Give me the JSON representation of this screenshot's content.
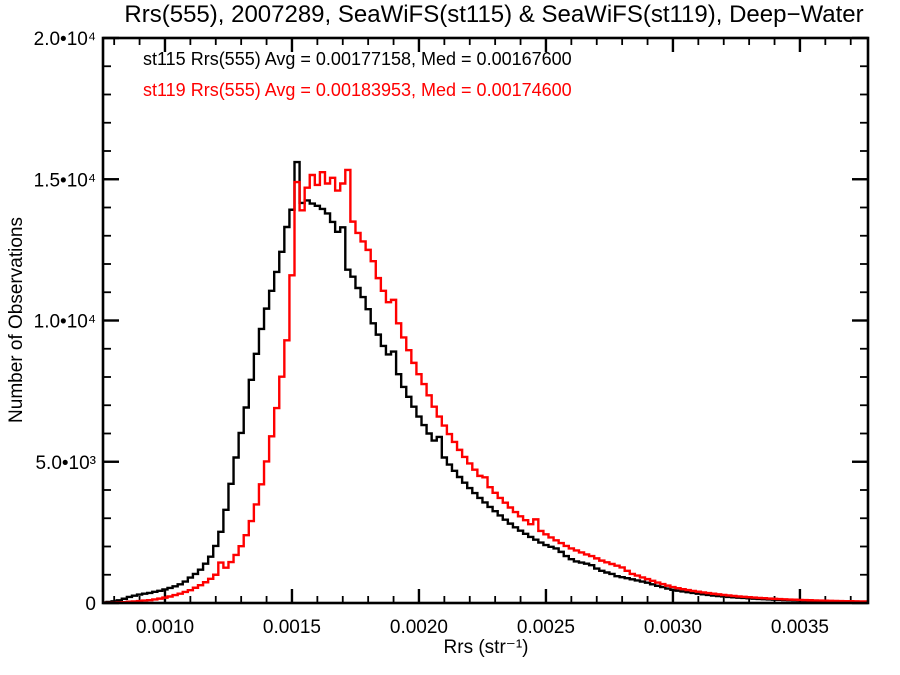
{
  "title": "Rrs(555), 2007289, SeaWiFS(st115) & SeaWiFS(st119), Deep−Water",
  "legend": {
    "st115": "st115 Rrs(555) Avg = 0.00177158, Med = 0.00167600",
    "st119": "st119 Rrs(555) Avg = 0.00183953, Med = 0.00174600"
  },
  "axes": {
    "xlabel": "Rrs (str⁻¹)",
    "ylabel": "Number of Observations"
  },
  "colors": {
    "st115": "#000000",
    "st119": "#ff0000",
    "frame": "#000000",
    "background": "#ffffff"
  },
  "chart_data": {
    "type": "line",
    "style": "step-histogram",
    "title": "Rrs(555), 2007289, SeaWiFS(st115) & SeaWiFS(st119), Deep−Water",
    "xlabel": "Rrs (str⁻¹)",
    "ylabel": "Number of Observations",
    "grid": false,
    "legend_position": "top-left-inside",
    "xlim": [
      0.000756,
      0.003768
    ],
    "ylim": [
      0,
      20000
    ],
    "x_major_ticks": [
      {
        "value": 0.001,
        "label": "0.0010"
      },
      {
        "value": 0.0015,
        "label": "0.0015"
      },
      {
        "value": 0.002,
        "label": "0.0020"
      },
      {
        "value": 0.0025,
        "label": "0.0025"
      },
      {
        "value": 0.003,
        "label": "0.0030"
      },
      {
        "value": 0.0035,
        "label": "0.0035"
      }
    ],
    "x_minor_step": 0.0001,
    "y_major_ticks": [
      {
        "value": 0,
        "label": "0"
      },
      {
        "value": 5000,
        "label": "5.0•10³"
      },
      {
        "value": 10000,
        "label": "1.0•10⁴"
      },
      {
        "value": 15000,
        "label": "1.5•10⁴"
      },
      {
        "value": 20000,
        "label": "2.0•10⁴"
      }
    ],
    "y_minor_step": 1000,
    "bin_start": 0.00076,
    "bin_width": 2e-05,
    "series": [
      {
        "name": "st115",
        "color": "#000000",
        "avg": 0.00177158,
        "med": 0.001676,
        "counts": [
          20,
          35,
          60,
          95,
          150,
          215,
          260,
          300,
          330,
          355,
          395,
          430,
          480,
          535,
          590,
          660,
          760,
          900,
          1030,
          1180,
          1390,
          1640,
          2020,
          2520,
          3300,
          4220,
          5150,
          6020,
          6920,
          7900,
          8820,
          9700,
          10420,
          11050,
          11720,
          12430,
          13310,
          13920,
          15610,
          14160,
          14250,
          14140,
          14060,
          13950,
          13790,
          13490,
          13140,
          13300,
          11800,
          11550,
          11150,
          10830,
          10400,
          9900,
          9500,
          9100,
          8800,
          8900,
          8100,
          7650,
          7300,
          6950,
          6600,
          6300,
          6000,
          5750,
          5880,
          5150,
          4900,
          4680,
          4460,
          4260,
          4070,
          3890,
          3720,
          3560,
          3400,
          3250,
          3100,
          2950,
          2810,
          2680,
          2560,
          2450,
          2340,
          2240,
          2140,
          2050,
          1990,
          1930,
          1810,
          1660,
          1550,
          1470,
          1430,
          1390,
          1340,
          1220,
          1140,
          1080,
          1030,
          950,
          915,
          880,
          840,
          800,
          760,
          720,
          660,
          610,
          565,
          510,
          465,
          435,
          408,
          382,
          356,
          332,
          308,
          286,
          266,
          248,
          232,
          217,
          203,
          190,
          178,
          166,
          155,
          145,
          136,
          127,
          118,
          111,
          105,
          99,
          94,
          89,
          84,
          79,
          74,
          70,
          66,
          62,
          59,
          56,
          53,
          50,
          48,
          45,
          43
        ]
      },
      {
        "name": "st119",
        "color": "#ff0000",
        "avg": 0.00183953,
        "med": 0.001746,
        "counts": [
          5,
          8,
          12,
          20,
          30,
          44,
          56,
          70,
          85,
          100,
          125,
          155,
          190,
          230,
          280,
          330,
          390,
          455,
          540,
          630,
          735,
          855,
          1000,
          1430,
          1250,
          1450,
          1700,
          2010,
          2400,
          2900,
          3490,
          4200,
          5010,
          5900,
          6900,
          8010,
          9300,
          11600,
          14900,
          13900,
          14700,
          15150,
          14800,
          15250,
          14850,
          15050,
          14600,
          14850,
          15330,
          13500,
          13100,
          12800,
          12500,
          12100,
          11500,
          11050,
          10650,
          10730,
          9900,
          9400,
          8950,
          8500,
          8100,
          7750,
          7350,
          6950,
          6600,
          6280,
          5980,
          5700,
          5420,
          5170,
          4940,
          4720,
          4500,
          4450,
          4100,
          3900,
          3720,
          3550,
          3380,
          3220,
          3070,
          2930,
          2790,
          2960,
          2550,
          2430,
          2320,
          2220,
          2120,
          2020,
          1930,
          1860,
          1790,
          1720,
          1660,
          1580,
          1500,
          1440,
          1380,
          1320,
          1260,
          1140,
          1030,
          970,
          905,
          845,
          785,
          725,
          670,
          615,
          565,
          525,
          490,
          458,
          428,
          400,
          374,
          350,
          327,
          306,
          286,
          267,
          250,
          234,
          219,
          205,
          192,
          180,
          169,
          158,
          148,
          139,
          131,
          123,
          116,
          109,
          103,
          97,
          92,
          87,
          82,
          78,
          74,
          70,
          66,
          63,
          60,
          57,
          54
        ]
      }
    ]
  }
}
